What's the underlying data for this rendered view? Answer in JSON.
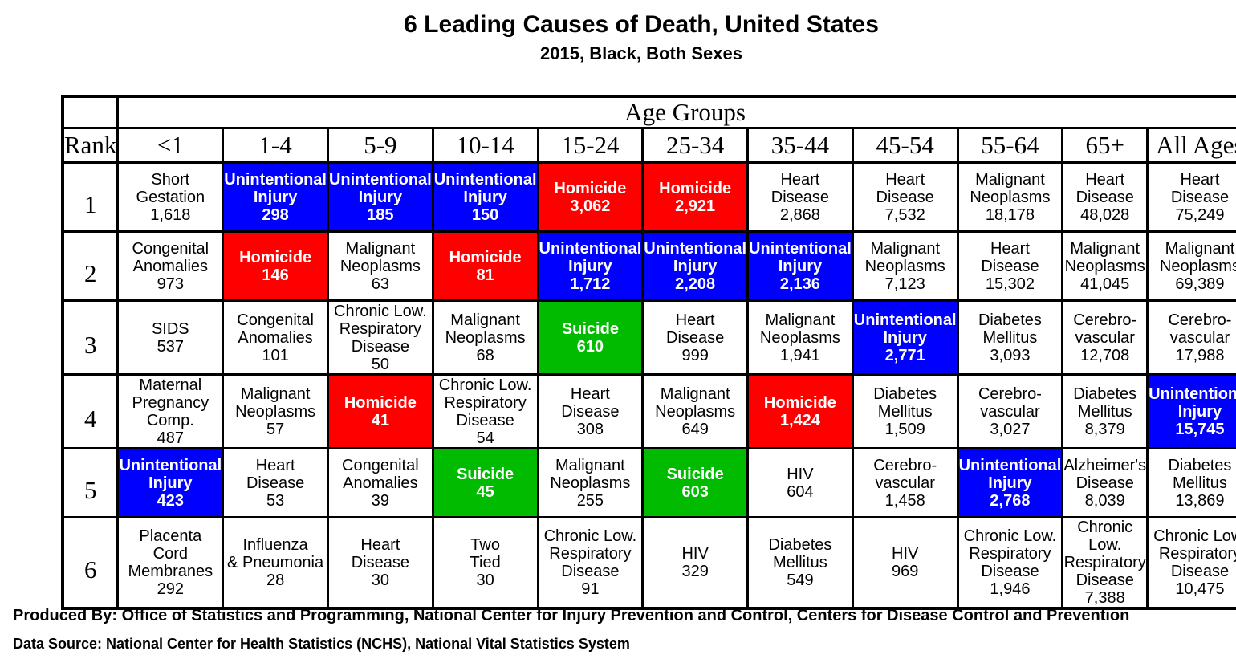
{
  "title": "6 Leading Causes of Death, United States",
  "subtitle": "2015, Black, Both Sexes",
  "footer": {
    "produced_by": "Produced By: Office of Statistics and Programming, National Center for Injury Prevention and Control, Centers for Disease Control and Prevention",
    "data_source": "Data Source: National Center for Health Statistics (NCHS), National Vital Statistics System"
  },
  "colors": {
    "blue": "#0000ff",
    "red": "#ff0000",
    "green": "#00bb00",
    "white": "#ffffff"
  },
  "chart_data": {
    "type": "table",
    "age_groups_header": "Age Groups",
    "rank_header": "Rank",
    "age_groups": [
      "<1",
      "1-4",
      "5-9",
      "10-14",
      "15-24",
      "25-34",
      "35-44",
      "45-54",
      "55-64",
      "65+",
      "All Ages"
    ],
    "ranks": [
      "1",
      "2",
      "3",
      "4",
      "5",
      "6"
    ],
    "rows": [
      [
        {
          "lines": [
            "Short",
            "Gestation"
          ],
          "value": "1,618",
          "color": "white"
        },
        {
          "lines": [
            "Unintentional",
            "Injury"
          ],
          "value": "298",
          "color": "blue"
        },
        {
          "lines": [
            "Unintentional",
            "Injury"
          ],
          "value": "185",
          "color": "blue"
        },
        {
          "lines": [
            "Unintentional",
            "Injury"
          ],
          "value": "150",
          "color": "blue"
        },
        {
          "lines": [
            "Homicide"
          ],
          "value": "3,062",
          "color": "red"
        },
        {
          "lines": [
            "Homicide"
          ],
          "value": "2,921",
          "color": "red"
        },
        {
          "lines": [
            "Heart",
            "Disease"
          ],
          "value": "2,868",
          "color": "white"
        },
        {
          "lines": [
            "Heart",
            "Disease"
          ],
          "value": "7,532",
          "color": "white"
        },
        {
          "lines": [
            "Malignant",
            "Neoplasms"
          ],
          "value": "18,178",
          "color": "white"
        },
        {
          "lines": [
            "Heart",
            "Disease"
          ],
          "value": "48,028",
          "color": "white"
        },
        {
          "lines": [
            "Heart",
            "Disease"
          ],
          "value": "75,249",
          "color": "white"
        }
      ],
      [
        {
          "lines": [
            "Congenital",
            "Anomalies"
          ],
          "value": "973",
          "color": "white"
        },
        {
          "lines": [
            "Homicide"
          ],
          "value": "146",
          "color": "red"
        },
        {
          "lines": [
            "Malignant",
            "Neoplasms"
          ],
          "value": "63",
          "color": "white"
        },
        {
          "lines": [
            "Homicide"
          ],
          "value": "81",
          "color": "red"
        },
        {
          "lines": [
            "Unintentional",
            "Injury"
          ],
          "value": "1,712",
          "color": "blue"
        },
        {
          "lines": [
            "Unintentional",
            "Injury"
          ],
          "value": "2,208",
          "color": "blue"
        },
        {
          "lines": [
            "Unintentional",
            "Injury"
          ],
          "value": "2,136",
          "color": "blue"
        },
        {
          "lines": [
            "Malignant",
            "Neoplasms"
          ],
          "value": "7,123",
          "color": "white"
        },
        {
          "lines": [
            "Heart",
            "Disease"
          ],
          "value": "15,302",
          "color": "white"
        },
        {
          "lines": [
            "Malignant",
            "Neoplasms"
          ],
          "value": "41,045",
          "color": "white"
        },
        {
          "lines": [
            "Malignant",
            "Neoplasms"
          ],
          "value": "69,389",
          "color": "white"
        }
      ],
      [
        {
          "lines": [
            "SIDS"
          ],
          "value": "537",
          "color": "white"
        },
        {
          "lines": [
            "Congenital",
            "Anomalies"
          ],
          "value": "101",
          "color": "white"
        },
        {
          "lines": [
            "Chronic Low.",
            "Respiratory",
            "Disease"
          ],
          "value": "50",
          "color": "white"
        },
        {
          "lines": [
            "Malignant",
            "Neoplasms"
          ],
          "value": "68",
          "color": "white"
        },
        {
          "lines": [
            "Suicide"
          ],
          "value": "610",
          "color": "green"
        },
        {
          "lines": [
            "Heart",
            "Disease"
          ],
          "value": "999",
          "color": "white"
        },
        {
          "lines": [
            "Malignant",
            "Neoplasms"
          ],
          "value": "1,941",
          "color": "white"
        },
        {
          "lines": [
            "Unintentional",
            "Injury"
          ],
          "value": "2,771",
          "color": "blue"
        },
        {
          "lines": [
            "Diabetes",
            "Mellitus"
          ],
          "value": "3,093",
          "color": "white"
        },
        {
          "lines": [
            "Cerebro-",
            "vascular"
          ],
          "value": "12,708",
          "color": "white"
        },
        {
          "lines": [
            "Cerebro-",
            "vascular"
          ],
          "value": "17,988",
          "color": "white"
        }
      ],
      [
        {
          "lines": [
            "Maternal",
            "Pregnancy",
            "Comp."
          ],
          "value": "487",
          "color": "white"
        },
        {
          "lines": [
            "Malignant",
            "Neoplasms"
          ],
          "value": "57",
          "color": "white"
        },
        {
          "lines": [
            "Homicide"
          ],
          "value": "41",
          "color": "red"
        },
        {
          "lines": [
            "Chronic Low.",
            "Respiratory",
            "Disease"
          ],
          "value": "54",
          "color": "white"
        },
        {
          "lines": [
            "Heart",
            "Disease"
          ],
          "value": "308",
          "color": "white"
        },
        {
          "lines": [
            "Malignant",
            "Neoplasms"
          ],
          "value": "649",
          "color": "white"
        },
        {
          "lines": [
            "Homicide"
          ],
          "value": "1,424",
          "color": "red"
        },
        {
          "lines": [
            "Diabetes",
            "Mellitus"
          ],
          "value": "1,509",
          "color": "white"
        },
        {
          "lines": [
            "Cerebro-",
            "vascular"
          ],
          "value": "3,027",
          "color": "white"
        },
        {
          "lines": [
            "Diabetes",
            "Mellitus"
          ],
          "value": "8,379",
          "color": "white"
        },
        {
          "lines": [
            "Unintentional",
            "Injury"
          ],
          "value": "15,745",
          "color": "blue"
        }
      ],
      [
        {
          "lines": [
            "Unintentional",
            "Injury"
          ],
          "value": "423",
          "color": "blue"
        },
        {
          "lines": [
            "Heart",
            "Disease"
          ],
          "value": "53",
          "color": "white"
        },
        {
          "lines": [
            "Congenital",
            "Anomalies"
          ],
          "value": "39",
          "color": "white"
        },
        {
          "lines": [
            "Suicide"
          ],
          "value": "45",
          "color": "green"
        },
        {
          "lines": [
            "Malignant",
            "Neoplasms"
          ],
          "value": "255",
          "color": "white"
        },
        {
          "lines": [
            "Suicide"
          ],
          "value": "603",
          "color": "green"
        },
        {
          "lines": [
            "HIV"
          ],
          "value": "604",
          "color": "white"
        },
        {
          "lines": [
            "Cerebro-",
            "vascular"
          ],
          "value": "1,458",
          "color": "white"
        },
        {
          "lines": [
            "Unintentional",
            "Injury"
          ],
          "value": "2,768",
          "color": "blue"
        },
        {
          "lines": [
            "Alzheimer's",
            "Disease"
          ],
          "value": "8,039",
          "color": "white"
        },
        {
          "lines": [
            "Diabetes",
            "Mellitus"
          ],
          "value": "13,869",
          "color": "white"
        }
      ],
      [
        {
          "lines": [
            "Placenta",
            "Cord",
            "Membranes"
          ],
          "value": "292",
          "color": "white"
        },
        {
          "lines": [
            "Influenza",
            "& Pneumonia"
          ],
          "value": "28",
          "color": "white"
        },
        {
          "lines": [
            "Heart",
            "Disease"
          ],
          "value": "30",
          "color": "white"
        },
        {
          "lines": [
            "Two",
            "Tied"
          ],
          "value": "30",
          "color": "white"
        },
        {
          "lines": [
            "Chronic Low.",
            "Respiratory",
            "Disease"
          ],
          "value": "91",
          "color": "white"
        },
        {
          "lines": [
            "HIV"
          ],
          "value": "329",
          "color": "white"
        },
        {
          "lines": [
            "Diabetes",
            "Mellitus"
          ],
          "value": "549",
          "color": "white"
        },
        {
          "lines": [
            "HIV"
          ],
          "value": "969",
          "color": "white"
        },
        {
          "lines": [
            "Chronic Low.",
            "Respiratory",
            "Disease"
          ],
          "value": "1,946",
          "color": "white"
        },
        {
          "lines": [
            "Chronic Low.",
            "Respiratory",
            "Disease"
          ],
          "value": "7,388",
          "color": "white"
        },
        {
          "lines": [
            "Chronic Low.",
            "Respiratory",
            "Disease"
          ],
          "value": "10,475",
          "color": "white"
        }
      ]
    ]
  }
}
